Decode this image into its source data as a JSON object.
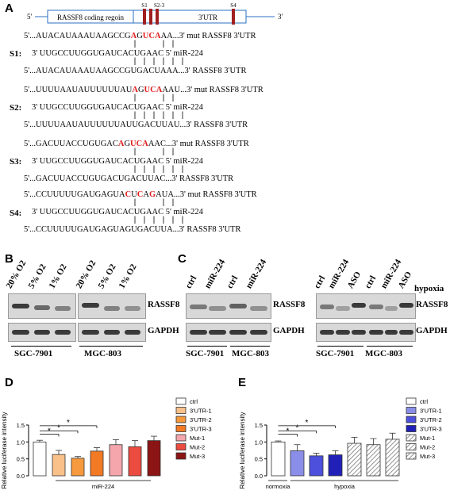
{
  "panelA": {
    "letter": "A",
    "map": {
      "prime5": "5'",
      "coding": "RASSF8 coding regoin",
      "utr": "3'UTR",
      "prime3": "3'",
      "s1": "S1",
      "s23": "S2-3",
      "s4": "S4"
    },
    "sites": [
      {
        "label": "S1:",
        "mut": [
          "5'...AUACAUAAAUAAGCCG",
          "A",
          "G",
          "U",
          "C",
          "A",
          "A",
          "A...3' mut RASSF8 3'UTR"
        ],
        "mir": "3' UUGCCUUGGUGAUCACUGAAC 5' miR-224",
        "wt": "5'...AUACAUAAAUAAGCCGUGACUAAA...3' RASSF8 3'UTR"
      },
      {
        "label": "S2:",
        "mut": [
          "5'...UUUUAAUAUUUUUUAU",
          "A",
          "G",
          "U",
          "C",
          "A",
          "A",
          "AU...3' mut RASSF8 3'UTR"
        ],
        "mir": "3' UUGCCUUGGUGAUCACUGAAC 5' miR-224",
        "wt": "5'...UUUUAAUAUUUUUUAUUGACUUAU...3' RASSF8 3'UTR"
      },
      {
        "label": "S3:",
        "mut": [
          "5'...GACUUACCUGUGAC",
          "A",
          "G",
          "U",
          "C",
          "A",
          "A",
          "AC...3' mut RASSF8 3'UTR"
        ],
        "mir": "3' UUGCCUUGGUGAUCACUGAAC 5' miR-224",
        "wt": "5'...GACUUACCUGUGACUGACUUAC...3' RASSF8 3'UTR"
      },
      {
        "label": "S4:",
        "mut": [
          "5'...CCUUUUUGAUGAGUA",
          "C",
          "U",
          "C",
          "A",
          "G",
          "A",
          "UA...3' mut RASSF8 3'UTR"
        ],
        "mir": "3' UUGCCUUGGUGAUCACUGAAC 5' miR-224",
        "wt": "5'...CCUUUUUGAUGAGUAGUGACUUA...3' RASSF8 3'UTR"
      }
    ]
  },
  "panelB": {
    "letter": "B",
    "lanes": [
      "20% O2",
      "5% O2",
      "1% O2",
      "20% O2",
      "5% O2",
      "1% O2"
    ],
    "rassf8": "RASSF8",
    "gapdh": "GAPDH",
    "cells": [
      "SGC-7901",
      "MGC-803"
    ]
  },
  "panelC": {
    "letter": "C",
    "lanesLeft": [
      "ctrl",
      "miR-224",
      "ctrl",
      "miR-224"
    ],
    "lanesRight": [
      "ctrl",
      "miR-224",
      "ASO",
      "ctrl",
      "miR-224",
      "ASO"
    ],
    "hypoxia": "hypoxia",
    "rassf8": "RASSF8",
    "gapdh": "GAPDH",
    "cells": [
      "SGC-7901",
      "MGC-803"
    ]
  },
  "chart_data": [
    {
      "panel": "D",
      "type": "bar",
      "ylabel": "Relative luciferase intensity",
      "xlabel": "miR-224",
      "ylim": [
        0,
        1.5
      ],
      "yticks": [
        "0.0",
        "0.5",
        "1.0",
        "1.5"
      ],
      "categories": [
        "ctrl",
        "3'UTR-1",
        "3'UTR-2",
        "3'UTR-3",
        "Mut-1",
        "Mut-2",
        "Mut-3"
      ],
      "values": [
        1.0,
        0.63,
        0.52,
        0.73,
        0.92,
        0.86,
        1.04
      ],
      "errors": [
        0.05,
        0.12,
        0.05,
        0.1,
        0.15,
        0.18,
        0.13
      ],
      "colors": [
        "#ffffff",
        "#f9c08a",
        "#f79a3e",
        "#f27a24",
        "#f4a6ac",
        "#ec4b40",
        "#8b1414"
      ],
      "significance": "*",
      "legend": "right"
    },
    {
      "panel": "E",
      "type": "bar",
      "ylabel": "Relative luciferase intensity",
      "xlabels": [
        "normoxia",
        "hypoxia"
      ],
      "ylim": [
        0,
        1.5
      ],
      "yticks": [
        "0.0",
        "0.5",
        "1.0",
        "1.5"
      ],
      "categories": [
        "ctrl",
        "3'UTR-1",
        "3'UTR-2",
        "3'UTR-3",
        "Mut-1",
        "Mut-2",
        "Mut-3"
      ],
      "values": [
        1.0,
        0.74,
        0.59,
        0.62,
        0.96,
        0.92,
        1.08
      ],
      "errors": [
        0.03,
        0.18,
        0.08,
        0.12,
        0.18,
        0.18,
        0.18
      ],
      "colors": [
        "#ffffff",
        "#8a8ee8",
        "#4c50dc",
        "#2020b8",
        "hatch",
        "hatch",
        "hatch"
      ],
      "significance": "*",
      "legend": "right"
    }
  ]
}
